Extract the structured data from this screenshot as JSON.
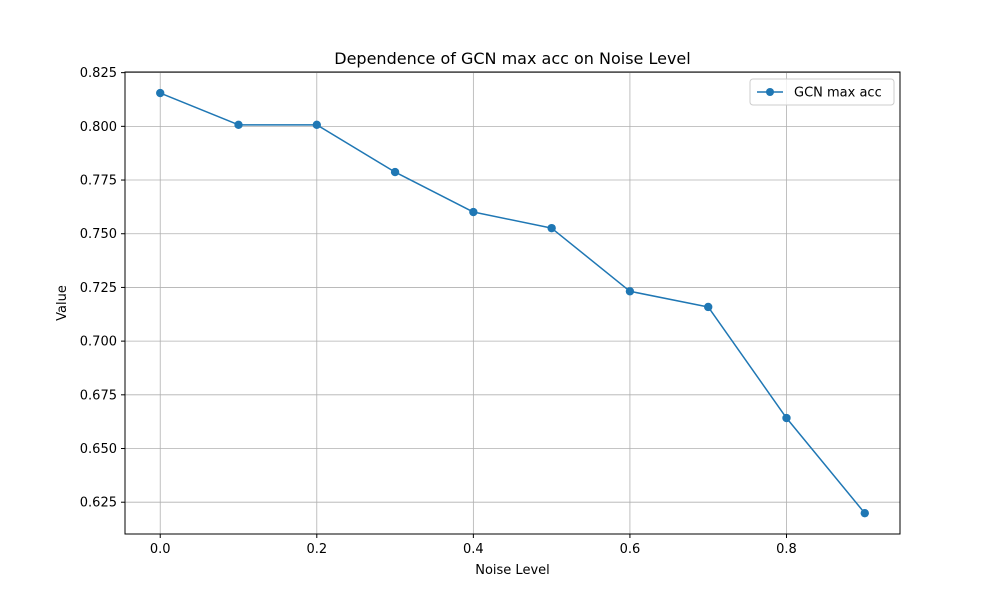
{
  "chart_data": {
    "type": "line",
    "title": "Dependence of GCN max acc on Noise Level",
    "xlabel": "Noise Level",
    "ylabel": "Value",
    "x": [
      0.0,
      0.1,
      0.2,
      0.3,
      0.4,
      0.5,
      0.6,
      0.7,
      0.8,
      0.9
    ],
    "series": [
      {
        "name": "GCN max acc",
        "color": "#1f77b4",
        "marker": "circle",
        "values": [
          0.8155,
          0.8007,
          0.8007,
          0.7787,
          0.7601,
          0.7526,
          0.7232,
          0.7159,
          0.6642,
          0.6199
        ]
      }
    ],
    "xlim": [
      -0.045,
      0.945
    ],
    "ylim": [
      0.6102,
      0.8253
    ],
    "xticks": [
      0.0,
      0.2,
      0.4,
      0.6,
      0.8
    ],
    "xtick_labels": [
      "0.0",
      "0.2",
      "0.4",
      "0.6",
      "0.8"
    ],
    "yticks": [
      0.625,
      0.65,
      0.675,
      0.7,
      0.725,
      0.75,
      0.775,
      0.8,
      0.825
    ],
    "ytick_labels": [
      "0.625",
      "0.650",
      "0.675",
      "0.700",
      "0.725",
      "0.750",
      "0.775",
      "0.800",
      "0.825"
    ],
    "grid": true,
    "legend_position": "upper right",
    "grid_color": "#b0b0b0",
    "axis_color": "#000000"
  }
}
